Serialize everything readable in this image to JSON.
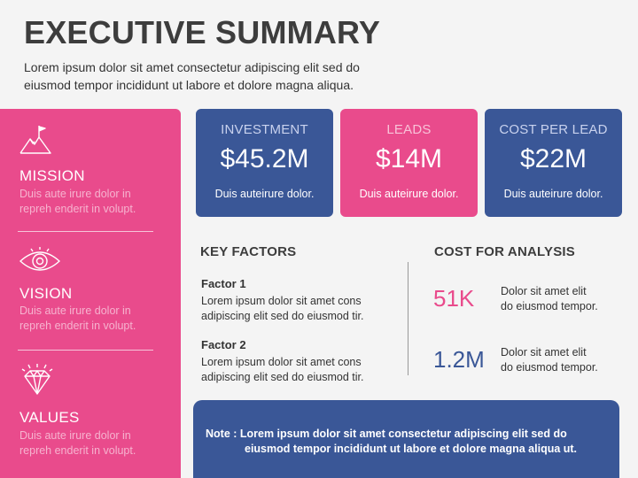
{
  "header": {
    "title": "EXECUTIVE SUMMARY",
    "subtitle_line1": "Lorem ipsum dolor sit amet consectetur adipiscing elit sed do",
    "subtitle_line2": "eiusmod tempor incididunt ut labore et dolore magna aliqua."
  },
  "sidebar": {
    "sections": [
      {
        "icon": "mountain-flag-icon",
        "heading": "MISSION",
        "line1": "Duis aute irure dolor in",
        "line2": "repreh enderit in volupt."
      },
      {
        "icon": "eye-icon",
        "heading": "VISION",
        "line1": "Duis aute irure dolor in",
        "line2": "repreh enderit in volupt."
      },
      {
        "icon": "diamond-icon",
        "heading": "VALUES",
        "line1": "Duis aute irure dolor in",
        "line2": "repreh enderit in volupt."
      }
    ]
  },
  "cards": [
    {
      "label": "INVESTMENT",
      "value": "$45.2M",
      "desc": "Duis auteirure dolor.",
      "color": "#3a5797"
    },
    {
      "label": "LEADS",
      "value": "$14M",
      "desc": "Duis auteirure dolor.",
      "color": "#e94b8c"
    },
    {
      "label": "COST PER LEAD",
      "value": "$22M",
      "desc": "Duis auteirure dolor.",
      "color": "#3a5797"
    }
  ],
  "key_factors": {
    "heading": "KEY FACTORS",
    "items": [
      {
        "title": "Factor 1",
        "line1": "Lorem ipsum dolor sit amet cons",
        "line2": "adipiscing elit sed do eiusmod tir."
      },
      {
        "title": "Factor 2",
        "line1": "Lorem ipsum dolor sit amet cons",
        "line2": "adipiscing elit sed do eiusmod tir."
      }
    ]
  },
  "cost_analysis": {
    "heading": "COST FOR ANALYSIS",
    "items": [
      {
        "value": "51K",
        "color": "#e94b8c",
        "line1": "Dolor sit amet elit",
        "line2": "do eiusmod tempor."
      },
      {
        "value": "1.2M",
        "color": "#3a5797",
        "line1": "Dolor sit amet elit",
        "line2": "do eiusmod tempor."
      }
    ]
  },
  "note": {
    "line1": "Note : Lorem ipsum dolor sit amet consectetur adipiscing elit sed do",
    "line2": "eiusmod tempor incididunt ut labore et dolore magna aliqua ut."
  },
  "colors": {
    "pink": "#e94b8c",
    "blue": "#3a5797",
    "title": "#3d3d3d"
  }
}
